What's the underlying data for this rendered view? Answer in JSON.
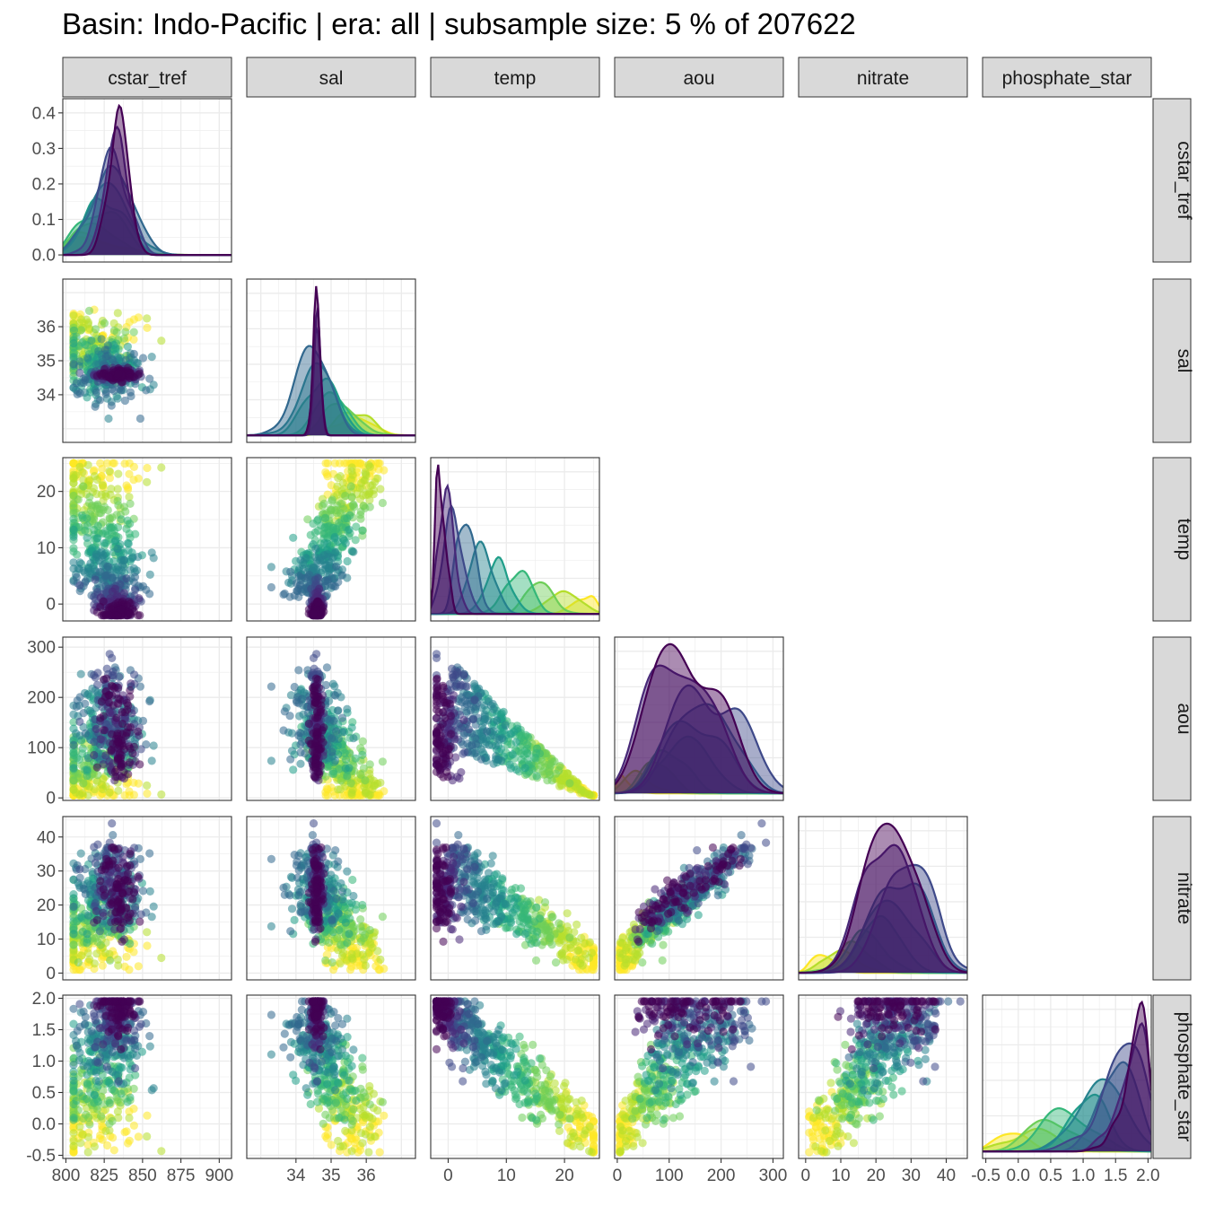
{
  "title": "Basin: Indo-Pacific | era: all | subsample size: 5 % of 207622",
  "chart_data": {
    "type": "scatter",
    "variables": [
      "cstar_tref",
      "sal",
      "temp",
      "aou",
      "nitrate",
      "phosphate_star"
    ],
    "axes": [
      {
        "var": "cstar_tref",
        "range": [
          798,
          908
        ],
        "ticks": [
          800,
          825,
          850,
          875,
          900
        ],
        "tick_labels": [
          "800",
          "825",
          "850",
          "875",
          "900"
        ]
      },
      {
        "var": "sal",
        "range": [
          32.6,
          37.4
        ],
        "ticks": [
          34,
          35,
          36
        ],
        "tick_labels": [
          "34",
          "35",
          "36"
        ]
      },
      {
        "var": "temp",
        "range": [
          -3,
          26
        ],
        "ticks": [
          0,
          10,
          20
        ],
        "tick_labels": [
          "0",
          "10",
          "20"
        ]
      },
      {
        "var": "aou",
        "range": [
          -5,
          320
        ],
        "ticks": [
          0,
          100,
          200,
          300
        ],
        "tick_labels": [
          "0",
          "100",
          "200",
          "300"
        ]
      },
      {
        "var": "nitrate",
        "range": [
          -2,
          46
        ],
        "ticks": [
          0,
          10,
          20,
          30,
          40
        ],
        "tick_labels": [
          "0",
          "10",
          "20",
          "30",
          "40"
        ]
      },
      {
        "var": "phosphate_star",
        "range": [
          -0.55,
          2.05
        ],
        "ticks": [
          -0.5,
          0.0,
          0.5,
          1.0,
          1.5,
          2.0
        ],
        "tick_labels": [
          "-0.5",
          "0.0",
          "0.5",
          "1.0",
          "1.5",
          "2.0"
        ]
      }
    ],
    "density_y_axis": {
      "range": [
        -0.02,
        0.44
      ],
      "ticks": [
        0.0,
        0.1,
        0.2,
        0.3,
        0.4
      ],
      "tick_labels": [
        "0.0",
        "0.1",
        "0.2",
        "0.3",
        "0.4"
      ]
    },
    "diagonal": "density",
    "lower": "scatter",
    "palette": [
      "#fde725",
      "#b5de2b",
      "#6ece58",
      "#35b779",
      "#1f9e89",
      "#26828e",
      "#31688e",
      "#3e4989",
      "#482878",
      "#440154"
    ],
    "grid": true,
    "legend": "none"
  }
}
